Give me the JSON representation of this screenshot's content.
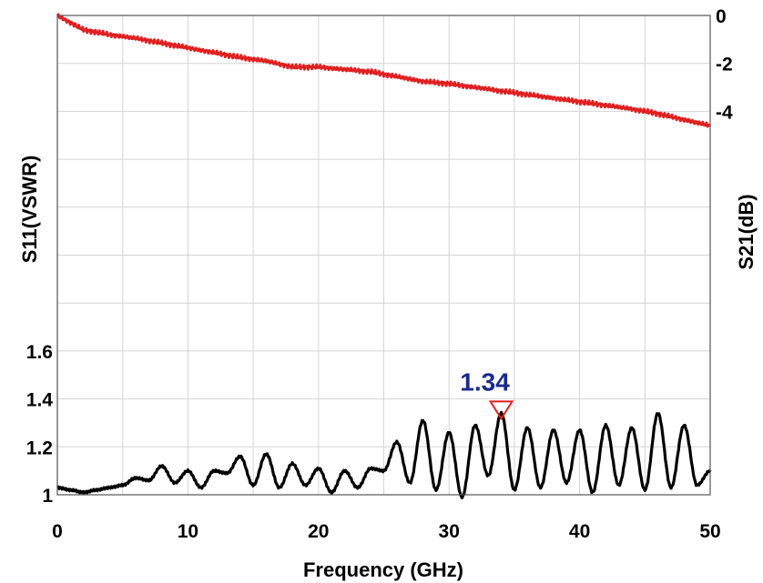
{
  "chart_data": {
    "type": "line",
    "xlabel": "Frequency (GHz)",
    "ylabel_left": "S11(VSWR)",
    "ylabel_right": "S21(dB)",
    "xlim": [
      0,
      50
    ],
    "ylim_left": [
      1,
      3
    ],
    "ylim_right": [
      -20,
      0
    ],
    "x_ticks": [
      "0",
      "10",
      "20",
      "30",
      "40",
      "50"
    ],
    "left_ticks": [
      "1",
      "1.2",
      "1.4",
      "1.6"
    ],
    "right_ticks": [
      "0",
      "-2",
      "-4"
    ],
    "grid": true,
    "series": [
      {
        "axis": "right",
        "color": "#e02020",
        "x": [
          0,
          2,
          4,
          6,
          8,
          10,
          12,
          14,
          16,
          18,
          20,
          22,
          24,
          26,
          28,
          30,
          32,
          34,
          36,
          38,
          40,
          42,
          44,
          46,
          48,
          50
        ],
        "values": [
          0.0,
          -0.6,
          -0.8,
          -0.95,
          -1.15,
          -1.35,
          -1.55,
          -1.75,
          -1.9,
          -2.15,
          -2.15,
          -2.25,
          -2.35,
          -2.55,
          -2.75,
          -2.85,
          -3.0,
          -3.15,
          -3.3,
          -3.45,
          -3.6,
          -3.75,
          -3.9,
          -4.1,
          -4.35,
          -4.6
        ]
      },
      {
        "axis": "left",
        "color": "#000000",
        "x": [
          0,
          1,
          2,
          3,
          4,
          5,
          6,
          7,
          8,
          9,
          10,
          11,
          12,
          13,
          14,
          15,
          16,
          17,
          18,
          19,
          20,
          21,
          22,
          23,
          24,
          25,
          26,
          27,
          28,
          29,
          30,
          31,
          32,
          33,
          34,
          35,
          36,
          37,
          38,
          39,
          40,
          41,
          42,
          43,
          44,
          45,
          46,
          47,
          48,
          49,
          50
        ],
        "values": [
          1.03,
          1.02,
          1.01,
          1.02,
          1.03,
          1.04,
          1.07,
          1.06,
          1.12,
          1.05,
          1.1,
          1.03,
          1.1,
          1.09,
          1.16,
          1.04,
          1.17,
          1.03,
          1.13,
          1.04,
          1.11,
          1.01,
          1.1,
          1.03,
          1.11,
          1.1,
          1.22,
          1.05,
          1.31,
          1.02,
          1.26,
          0.99,
          1.29,
          1.08,
          1.34,
          1.02,
          1.28,
          1.03,
          1.27,
          1.05,
          1.27,
          1.01,
          1.29,
          1.04,
          1.28,
          1.02,
          1.34,
          1.03,
          1.29,
          1.04,
          1.1
        ]
      }
    ],
    "marker": {
      "x": 34,
      "value": 1.34,
      "label": "1.34",
      "color": "#1a2a8c",
      "marker_color": "#e02020"
    }
  }
}
